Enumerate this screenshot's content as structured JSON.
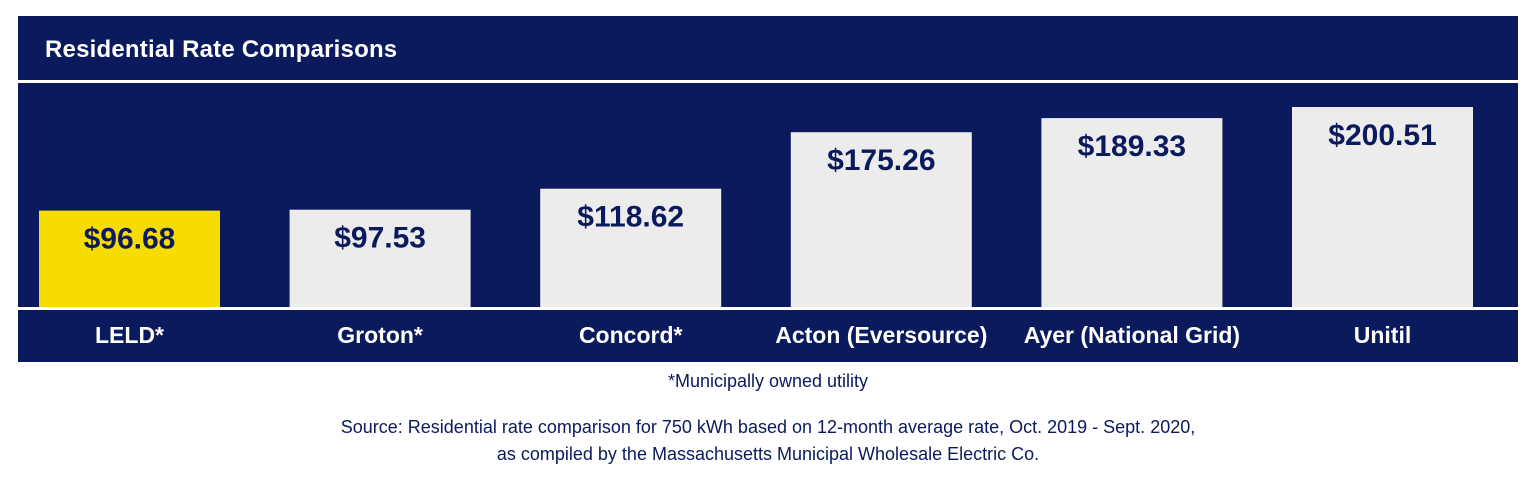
{
  "title": "Residential Rate Comparisons",
  "footnote": "*Municipally owned utility",
  "source_line1": "Source: Residential rate comparison for 750 kWh based on 12-month average rate, Oct. 2019 - Sept. 2020,",
  "source_line2": "as compiled by the Massachusetts Municipal Wholesale Electric Co.",
  "colors": {
    "panel": "#0a1a5c",
    "highlight_bar": "#f6dc00",
    "bar": "#ececed",
    "highlight_label": "#f6dc00",
    "label": "#ffffff",
    "value_text": "#0a1a5c"
  },
  "chart_data": {
    "type": "bar",
    "title": "Residential Rate Comparisons",
    "categories": [
      "LELD*",
      "Groton*",
      "Concord*",
      "Acton (Eversource)",
      "Ayer (National Grid)",
      "Unitil"
    ],
    "values": [
      96.68,
      97.53,
      118.62,
      175.26,
      189.33,
      200.51
    ],
    "value_labels": [
      "$96.68",
      "$97.53",
      "$118.62",
      "$175.26",
      "$189.33",
      "$200.51"
    ],
    "highlight_index": 0,
    "xlabel": "",
    "ylabel": "",
    "grid": false,
    "legend": "none"
  }
}
